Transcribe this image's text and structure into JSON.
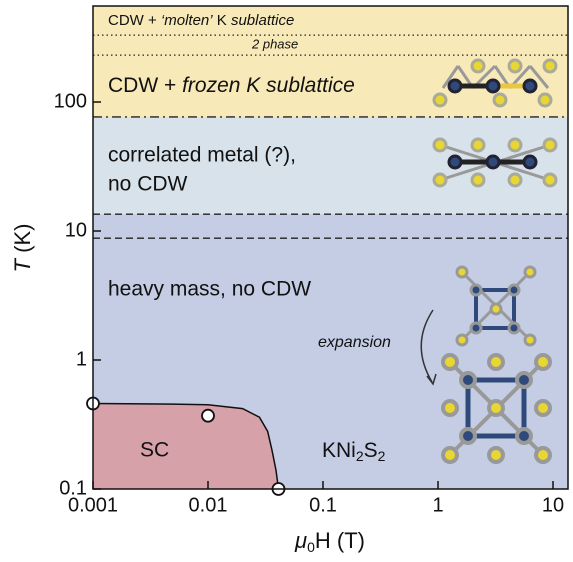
{
  "chart_data": {
    "type": "phase_diagram",
    "log_x": true,
    "log_y": true,
    "xlim": [
      0.001,
      13.5
    ],
    "ylim": [
      0.1,
      555
    ],
    "xticks": [
      0.001,
      0.01,
      0.1,
      1,
      10
    ],
    "yticks": [
      0.1,
      1,
      10,
      100
    ],
    "xlabel": {
      "symbol": "μ",
      "sub": "0",
      "rest": "H (T)"
    },
    "ylabel": {
      "symbol": "T",
      "rest": " (K)"
    },
    "regions": [
      {
        "range": [
          76.6,
          555
        ],
        "color": "#f8e9b8"
      },
      {
        "range": [
          13.5,
          76.6
        ],
        "color": "#d7e2ea"
      },
      {
        "range": [
          0.1,
          13.5
        ],
        "color": "#c5cde4"
      }
    ],
    "boundaries": [
      {
        "value": 330,
        "style": "dotted"
      },
      {
        "value": 231,
        "style": "dotted"
      },
      {
        "value": 76.6,
        "style": "dashdot"
      },
      {
        "value": 13.5,
        "style": "dashed"
      },
      {
        "value": 8.8,
        "style": "dashed"
      }
    ],
    "sc_boundary": {
      "color": "#d6a1a9",
      "x": [
        0.001,
        0.005,
        0.01,
        0.02,
        0.028,
        0.033,
        0.036,
        0.039,
        0.041
      ],
      "y": [
        0.46,
        0.455,
        0.45,
        0.42,
        0.36,
        0.28,
        0.2,
        0.14,
        0.1
      ]
    },
    "points": {
      "x": [
        0.001,
        0.01,
        0.041
      ],
      "y": [
        0.46,
        0.37,
        0.1
      ]
    },
    "labels": {
      "molten": {
        "a": "CDW + ",
        "b": "‘molten’",
        "c": " K ",
        "d": "sublattice"
      },
      "two_phase": "2 phase",
      "frozen": {
        "a": "CDW + ",
        "b": "frozen K sublattice"
      },
      "correlated": [
        "correlated metal (?),",
        "no CDW"
      ],
      "heavy": "heavy mass, no CDW",
      "expansion": "expansion",
      "sc": "SC",
      "compound": [
        "KNi",
        "2",
        "S",
        "2"
      ]
    }
  }
}
